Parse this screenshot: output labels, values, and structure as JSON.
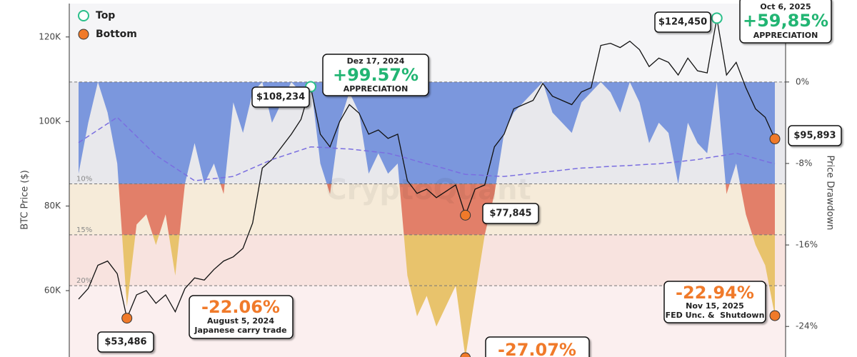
{
  "chart_data": {
    "type": "line",
    "ylabel": "BTC Price ($)",
    "y2label": "Price Drawdown",
    "watermark": "CryptoQuant",
    "ylim": [
      44300,
      127900
    ],
    "yticks": [
      {
        "value": 60000,
        "label": "60K"
      },
      {
        "value": 80000,
        "label": "80K"
      },
      {
        "value": 100000,
        "label": "100K"
      },
      {
        "value": 120000,
        "label": "120K"
      }
    ],
    "y2lim": [
      -27,
      7.7
    ],
    "y2ticks": [
      {
        "value": 0,
        "label": "0%"
      },
      {
        "value": -8,
        "label": "-8%"
      },
      {
        "value": -16,
        "label": "-16%"
      },
      {
        "value": -24,
        "label": "-24%"
      }
    ],
    "legend": [
      {
        "name": "Top",
        "color": "#2bbf8a"
      },
      {
        "name": "Bottom",
        "color": "#f07a2a"
      }
    ],
    "zones": [
      {
        "top": 0,
        "fill": "#7b97dd",
        "bg": "#e8e8ec"
      },
      {
        "top": -10,
        "label": "10%",
        "fill": "#e27f69",
        "bg": "#f6ebd9"
      },
      {
        "top": -15,
        "label": "15%",
        "fill": "#e8c36c",
        "bg": "#f8e3df"
      },
      {
        "top": -20,
        "label": "20%",
        "fill": "#e8c36c",
        "bg": "#fbefef"
      }
    ],
    "series": [
      {
        "color": "#111111",
        "values": [
          58000,
          60500,
          66000,
          67000,
          64000,
          53486,
          59000,
          60000,
          57000,
          59000,
          55000,
          60500,
          63000,
          62500,
          65000,
          67000,
          68000,
          70000,
          76000,
          89000,
          91000,
          94000,
          97000,
          100500,
          108234,
          97000,
          94000,
          100000,
          104000,
          102000,
          97000,
          98000,
          96000,
          97000,
          86000,
          83000,
          84000,
          82000,
          83500,
          85000,
          77845,
          84000,
          85000,
          94000,
          97000,
          103000,
          104000,
          105000,
          109000,
          106000,
          105000,
          104000,
          107000,
          108000,
          118000,
          118500,
          117500,
          119000,
          117000,
          113000,
          115000,
          114000,
          111000,
          115000,
          112000,
          111500,
          124450,
          111000,
          114000,
          108000,
          103000,
          101000,
          95893
        ]
      },
      {
        "color": "#7a6ee0",
        "dash": true,
        "values": [
          95000,
          96500,
          98000,
          99500,
          101000,
          98750,
          96500,
          94250,
          92000,
          90500,
          89000,
          87500,
          86000,
          86250,
          86500,
          86750,
          87000,
          88000,
          89000,
          90000,
          91000,
          91750,
          92500,
          93250,
          94000,
          93900,
          93800,
          93600,
          93500,
          93250,
          93000,
          92750,
          92500,
          91900,
          91300,
          90600,
          90000,
          89400,
          88800,
          88100,
          87500,
          87400,
          87250,
          87100,
          87000,
          87250,
          87500,
          87750,
          88000,
          88250,
          88500,
          88750,
          89000,
          89100,
          89250,
          89400,
          89500,
          89600,
          89750,
          89900,
          90000,
          90250,
          90500,
          90750,
          91000,
          91400,
          91750,
          92100,
          92500,
          91900,
          91250,
          90600,
          90000
        ]
      },
      {
        "axis": "y2",
        "fill": true,
        "values": [
          -9,
          -4,
          0,
          -3,
          -8,
          -22.06,
          -14,
          -13,
          -16,
          -13,
          -19,
          -10,
          -6,
          -10,
          -8,
          -11,
          -2,
          -5,
          -1,
          0,
          -4,
          -2,
          0,
          -1,
          0,
          -8,
          -11,
          -4,
          -1,
          -3,
          -9,
          -7,
          -9,
          -8,
          -19,
          -23,
          -21,
          -24,
          -22,
          -20,
          -27.07,
          -21,
          -15,
          -11,
          -5,
          -3,
          -2,
          -1,
          0,
          -3,
          -4,
          -5,
          -2,
          -1,
          0,
          -1,
          -3,
          0,
          -2,
          -6,
          -4,
          -5,
          -10,
          -4,
          -6,
          -7,
          0,
          -11,
          -8,
          -13,
          -16,
          -18,
          -22.94
        ]
      }
    ],
    "callouts": [
      {
        "value": 108234,
        "label": "$108,234",
        "kind": "Top"
      },
      {
        "value": 124450,
        "label": "$124,450",
        "kind": "Top"
      },
      {
        "value": 95893,
        "label": "$95,893",
        "kind": "Bottom"
      },
      {
        "value": 77845,
        "label": "$77,845",
        "kind": "Bottom"
      },
      {
        "value": 53486,
        "label": "$53,486",
        "kind": "Bottom"
      }
    ],
    "annotations": [
      {
        "date": "Dez 17, 2024",
        "change": "+99.57%",
        "note": "APPRECIATION",
        "color": "#22b573"
      },
      {
        "date": "Oct 6, 2025",
        "change": "+59,85%",
        "note": "APPRECIATION",
        "color": "#22b573"
      },
      {
        "change": "-22.06%",
        "date": "August 5, 2024",
        "note": "Japanese carry trade",
        "color": "#f07a2a"
      },
      {
        "value": -22.94,
        "change": "-22.94%",
        "date": "Nov 15, 2025",
        "note": "FED Unc. &  Shutdown",
        "color": "#f07a2a"
      },
      {
        "value": -27.07,
        "change": "-27.07%",
        "color": "#f07a2a"
      }
    ]
  }
}
